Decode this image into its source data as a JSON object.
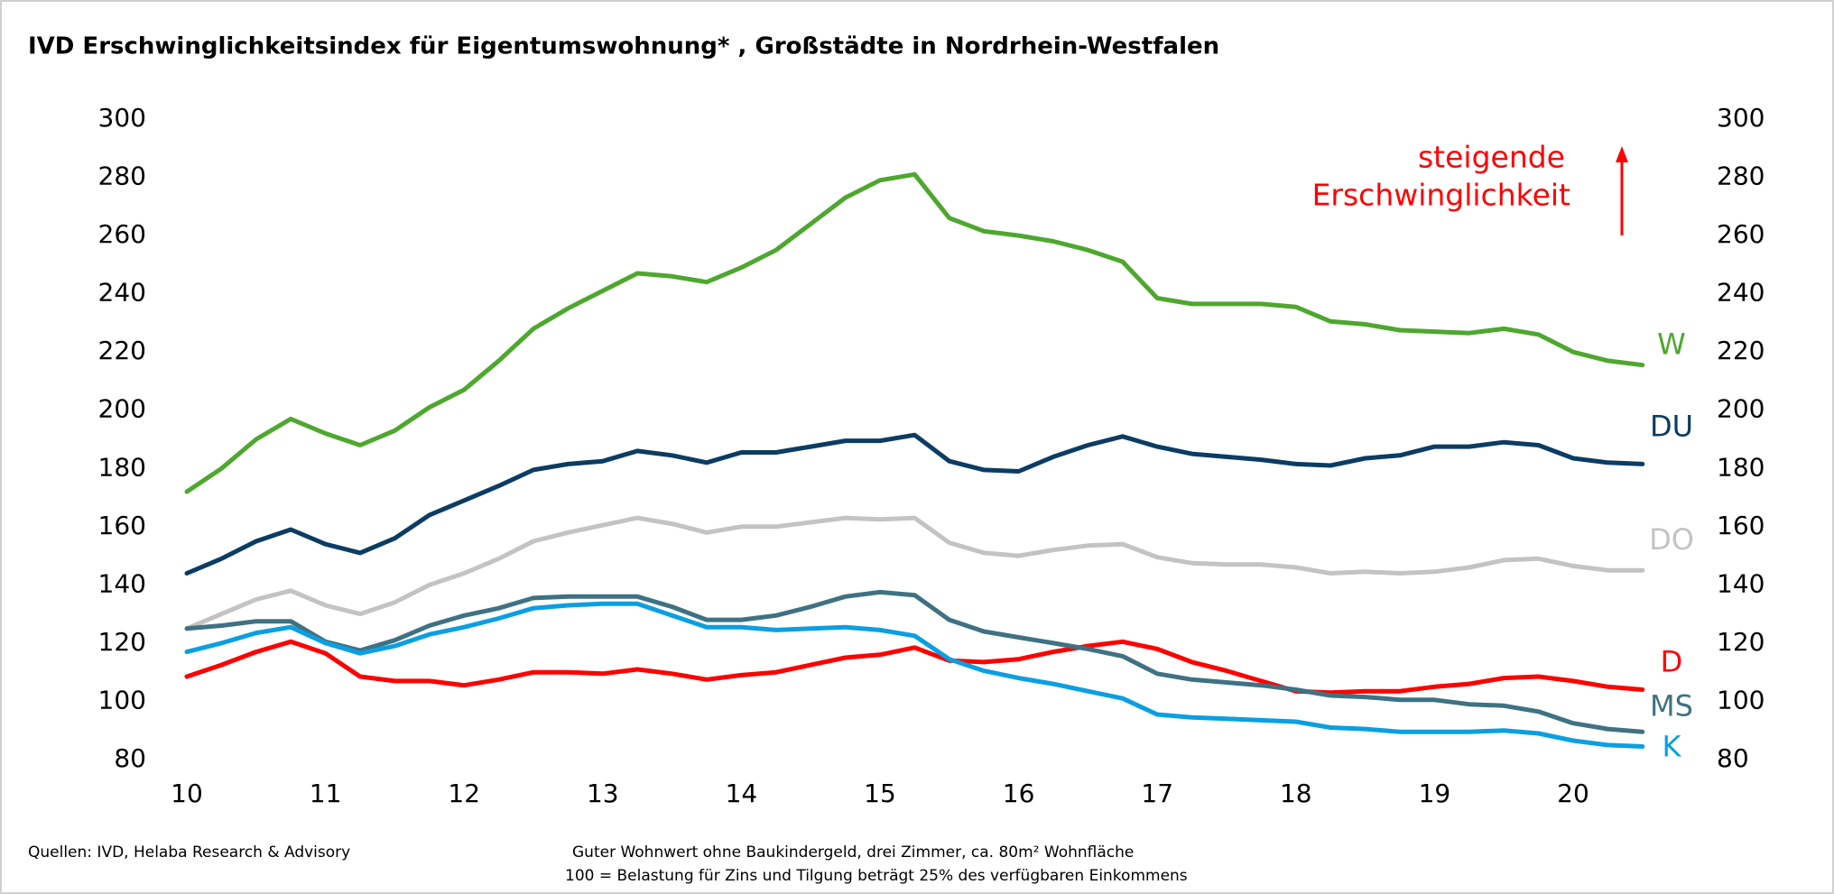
{
  "chart_data": {
    "type": "line",
    "title": "IVD Erschwinglichkeitsindex für Eigentumswohnung* , Großstädte in Nordrhein-Westfalen",
    "annotation": [
      "steigende",
      "Erschwinglichkeit"
    ],
    "footnotes": [
      "Quellen: IVD, Helaba Research  & Advisory",
      "Guter Wohnwert ohne Baukindergeld, drei Zimmer, ca. 80m² Wohnfläche",
      "100 = Belastung für Zins und Tilgung beträgt 25% des verfügbaren Einkommens"
    ],
    "x": [
      10,
      10.25,
      10.5,
      10.75,
      11,
      11.25,
      11.5,
      11.75,
      12,
      12.25,
      12.5,
      12.75,
      13,
      13.25,
      13.5,
      13.75,
      14,
      14.25,
      14.5,
      14.75,
      15,
      15.25,
      15.5,
      15.75,
      16,
      16.25,
      16.5,
      16.75,
      17,
      17.25,
      17.5,
      17.75,
      18,
      18.25,
      18.5,
      18.75,
      19,
      19.25,
      19.5,
      19.75,
      20,
      20.25,
      20.5
    ],
    "xlim": [
      10,
      20.5
    ],
    "xticks": [
      10,
      11,
      12,
      13,
      14,
      15,
      16,
      17,
      18,
      19,
      20
    ],
    "ylim": [
      80,
      300
    ],
    "yticks": [
      80,
      100,
      120,
      140,
      160,
      180,
      200,
      220,
      240,
      260,
      280,
      300
    ],
    "y2lim": [
      80,
      300
    ],
    "y2ticks": [
      80,
      100,
      120,
      140,
      160,
      180,
      200,
      220,
      240,
      260,
      280,
      300
    ],
    "grid": false,
    "series": [
      {
        "name": "W",
        "color": "#4ea72e",
        "values": [
          172,
          180,
          190,
          197,
          192,
          188,
          193,
          201,
          207,
          217,
          228,
          235,
          241,
          247,
          246,
          244,
          249,
          255,
          264,
          273,
          279,
          281,
          266,
          261.5,
          260,
          258,
          255,
          251,
          238.5,
          236.5,
          236.5,
          236.5,
          235.5,
          230.5,
          229.5,
          227.5,
          227,
          226.5,
          228,
          226,
          220,
          217,
          215.5
        ]
      },
      {
        "name": "DU",
        "color": "#0b3c63",
        "values": [
          144,
          149,
          155,
          159,
          154,
          151,
          156,
          164,
          169,
          174,
          179.5,
          181.5,
          182.5,
          186,
          184.5,
          182,
          185.5,
          185.5,
          187.5,
          189.5,
          189.5,
          191.5,
          182.5,
          179.5,
          179,
          184,
          188,
          191,
          187.5,
          185,
          184,
          183,
          181.5,
          181,
          183.5,
          184.5,
          187.5,
          187.5,
          189,
          188,
          183.5,
          182,
          181.5
        ]
      },
      {
        "name": "DO",
        "color": "#c3c3c3",
        "values": [
          125,
          130,
          135,
          138,
          133,
          130,
          134,
          140,
          144,
          149,
          155,
          158,
          160.5,
          163,
          161,
          158,
          160,
          160,
          161.5,
          163,
          162.5,
          163,
          154.5,
          151,
          150,
          152,
          153.5,
          154,
          149.5,
          147.5,
          147,
          147,
          146,
          144,
          144.5,
          144,
          144.5,
          146,
          148.5,
          149,
          146.5,
          145,
          145
        ]
      },
      {
        "name": "D",
        "color": "#ff0000",
        "values": [
          108.5,
          112.5,
          117,
          120.5,
          116.5,
          108.5,
          107,
          107,
          105.5,
          107.5,
          110,
          110,
          109.5,
          111,
          109.5,
          107.5,
          109,
          110,
          112.5,
          115,
          116,
          118.5,
          114,
          113.5,
          114.5,
          117,
          119,
          120.5,
          118,
          113.5,
          110.5,
          107,
          103.5,
          103,
          103.5,
          103.5,
          105,
          106,
          108,
          108.5,
          107,
          105,
          104
        ]
      },
      {
        "name": "MS",
        "color": "#3e7283",
        "values": [
          125,
          126,
          127.5,
          127.5,
          120.5,
          117.5,
          121,
          126,
          129.5,
          132,
          135.5,
          136,
          136,
          136,
          132.5,
          128,
          128,
          129.5,
          132.5,
          136,
          137.5,
          136.5,
          128,
          124,
          122,
          120,
          118,
          115.5,
          109.5,
          107.5,
          106.5,
          105.5,
          104,
          102,
          101.5,
          100.5,
          100.5,
          99,
          98.5,
          96.5,
          92.5,
          90.5,
          89.5
        ]
      },
      {
        "name": "K",
        "color": "#0a9fe2",
        "values": [
          117,
          120,
          123.5,
          125.5,
          120,
          116.5,
          119,
          123,
          125.5,
          128.5,
          132,
          133,
          133.5,
          133.5,
          129.5,
          125.5,
          125.5,
          124.5,
          125,
          125.5,
          124.5,
          122.5,
          114.5,
          110.5,
          108,
          106,
          103.5,
          101,
          95.5,
          94.5,
          94,
          93.5,
          93,
          91,
          90.5,
          89.5,
          89.5,
          89.5,
          90,
          89,
          86.5,
          85,
          84.5
        ]
      }
    ]
  }
}
